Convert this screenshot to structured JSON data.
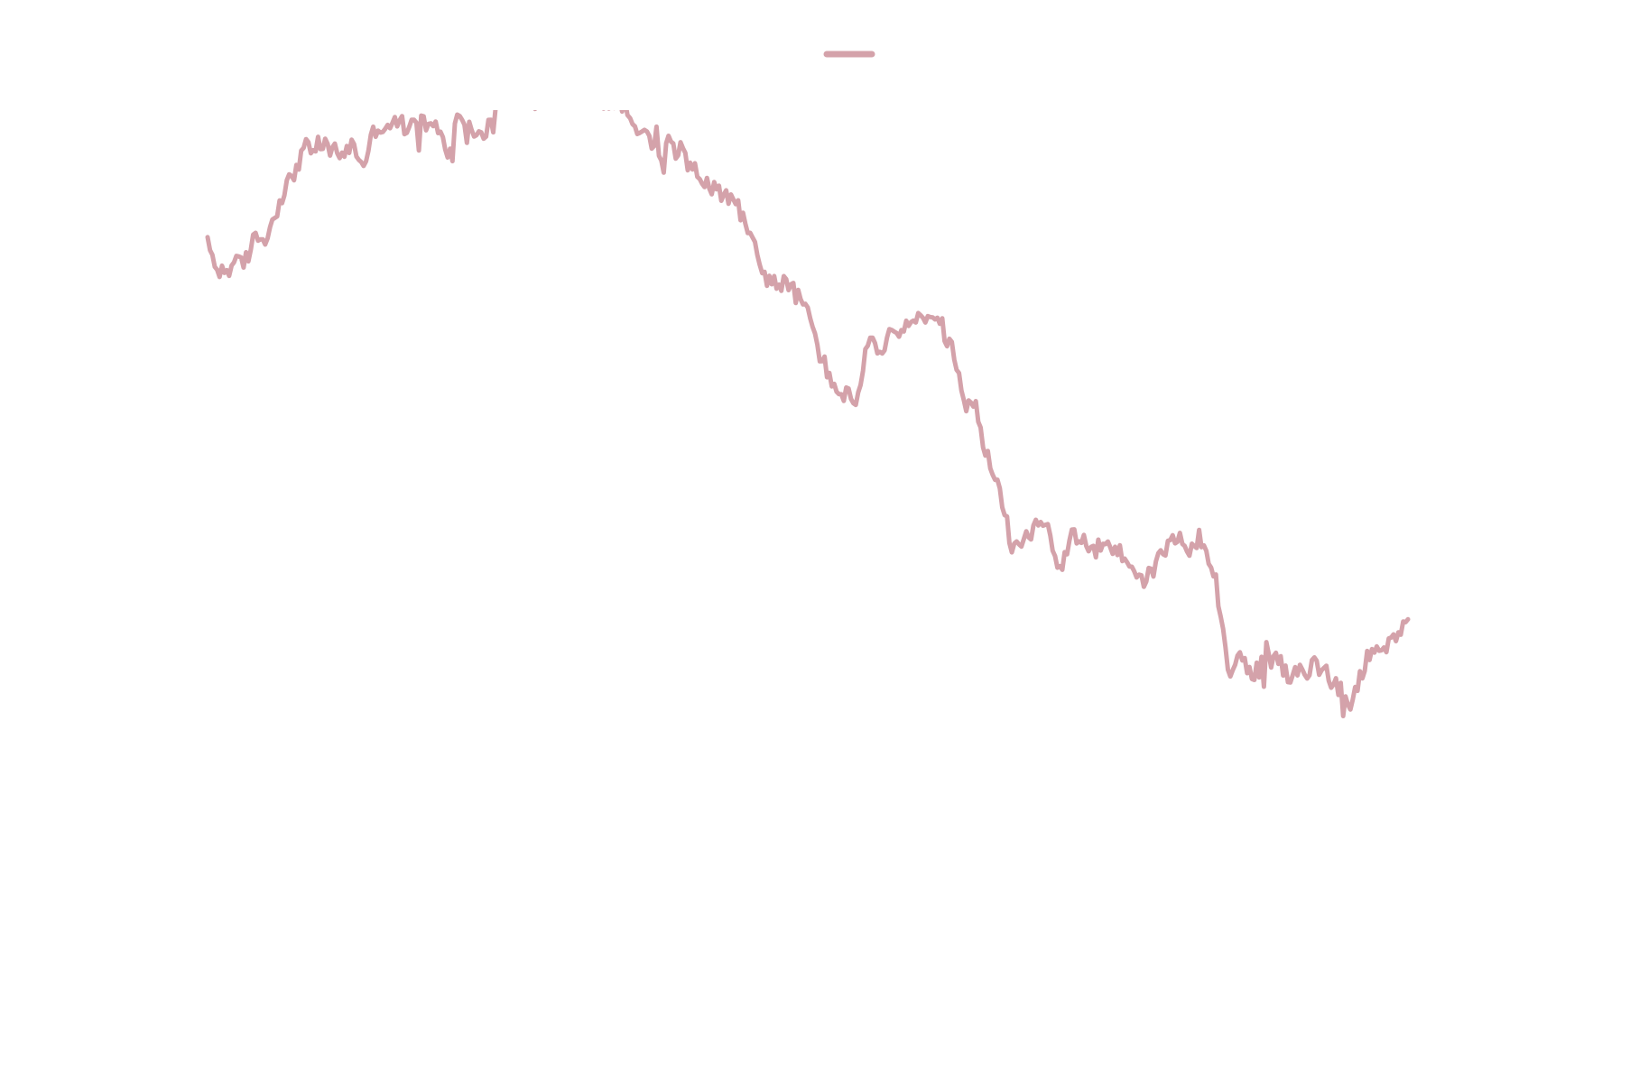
{
  "chart_data": {
    "type": "line",
    "title": "",
    "xlabel": "",
    "ylabel": "",
    "grid": false,
    "axes_visible": false,
    "legend": {
      "position": "top-center",
      "entries": [
        {
          "name": ""
        }
      ]
    },
    "colors": {
      "series": "#d4a2aa",
      "background": "#ffffff"
    },
    "note": "",
    "xlim": [
      0,
      1000
    ],
    "ylim": [
      0,
      100
    ],
    "series": [
      {
        "name": "",
        "x": [
          0,
          10,
          20,
          30,
          40,
          50,
          60,
          70,
          80,
          90,
          100,
          110,
          120,
          130,
          140,
          150,
          160,
          170,
          180,
          190,
          200,
          210,
          220,
          230,
          240,
          255,
          275,
          310,
          352,
          360,
          370,
          380,
          390,
          400,
          410,
          420,
          430,
          440,
          450,
          460,
          470,
          480,
          490,
          500,
          510,
          520,
          530,
          540,
          550,
          560,
          570,
          580,
          590,
          600,
          610,
          620,
          630,
          640,
          650,
          660,
          670,
          680,
          690,
          700,
          710,
          720,
          730,
          740,
          750,
          760,
          770,
          780,
          790,
          800,
          810,
          820,
          830,
          840,
          850,
          860,
          870,
          880,
          890,
          900,
          910,
          920,
          930,
          940,
          950,
          960,
          970,
          980,
          990,
          1000
        ],
        "y": [
          82.0,
          78.4,
          79.4,
          79.6,
          83.1,
          83.2,
          88.2,
          91.0,
          94.8,
          95.2,
          95.2,
          94.1,
          95.3,
          92.9,
          97.7,
          98.0,
          98.2,
          97.6,
          98.4,
          97.5,
          94.6,
          99.5,
          97.3,
          96.3,
          99.9,
          102.4,
          103.0,
          102.4,
          100.0,
          97.5,
          95.1,
          94.5,
          94.6,
          94.6,
          91.6,
          89.5,
          88.9,
          87.8,
          85.0,
          79.4,
          76.9,
          77.1,
          75.6,
          73.3,
          67.8,
          63.7,
          62.5,
          61.1,
          69.6,
          67.1,
          70.5,
          70.8,
          72.4,
          71.9,
          71.9,
          68.0,
          61.5,
          60.3,
          53.6,
          49.4,
          42.5,
          43.3,
          45.7,
          44.6,
          39.4,
          43.2,
          42.9,
          41.9,
          42.5,
          41.2,
          39.8,
          37.5,
          39.7,
          42.6,
          43.1,
          42.0,
          43.3,
          37.7,
          26.6,
          27.0,
          25.5,
          26.4,
          27.8,
          24.5,
          25.3,
          26.3,
          25.8,
          24.4,
          20.5,
          24.8,
          29.1,
          28.9,
          29.3,
          32.5
        ]
      }
    ]
  }
}
